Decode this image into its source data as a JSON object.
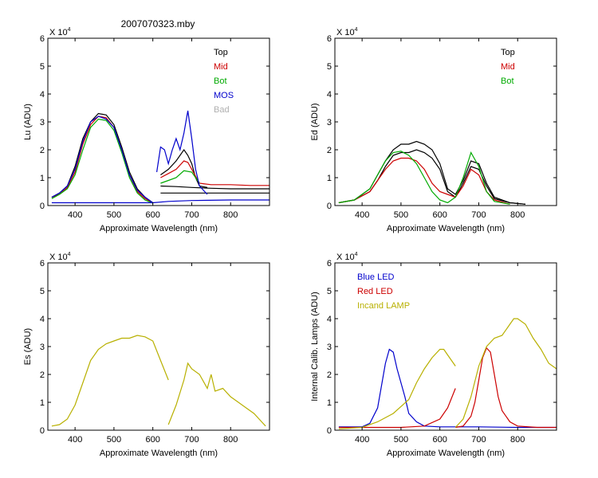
{
  "figure_title": "2007070323.mby",
  "exponent_label": {
    "base": "X 10",
    "power": "4"
  },
  "chart_data": [
    {
      "id": "lu",
      "type": "line",
      "ylabel": "Lu (ADU)",
      "xlabel": "Approximate Wavelength (nm)",
      "xlim": [
        330,
        900
      ],
      "ylim": [
        0,
        6
      ],
      "xticks": [
        400,
        500,
        600,
        700,
        800
      ],
      "yticks": [
        0,
        1,
        2,
        3,
        4,
        5,
        6
      ],
      "legend_position": "top-right",
      "legend": [
        {
          "label": "Top",
          "color": "#000000"
        },
        {
          "label": "Mid",
          "color": "#cc0000"
        },
        {
          "label": "Bot",
          "color": "#00aa00"
        },
        {
          "label": "MOS",
          "color": "#0000cc"
        },
        {
          "label": "Bad",
          "color": "#b0b0b0"
        }
      ],
      "series": [
        {
          "name": "Top",
          "color": "#000000",
          "x": [
            340,
            360,
            380,
            400,
            420,
            440,
            460,
            480,
            500,
            520,
            540,
            560,
            580,
            600
          ],
          "y": [
            0.3,
            0.45,
            0.7,
            1.4,
            2.4,
            3.0,
            3.3,
            3.25,
            2.9,
            2.1,
            1.2,
            0.6,
            0.3,
            0.1
          ]
        },
        {
          "name": "Top",
          "color": "#000000",
          "x": [
            620,
            640,
            660,
            680,
            690,
            700,
            710,
            720,
            740
          ],
          "y": [
            1.1,
            1.3,
            1.6,
            2.0,
            1.8,
            1.5,
            1.0,
            0.7,
            0.65
          ]
        },
        {
          "name": "Top",
          "color": "#000000",
          "x": [
            620,
            660,
            700,
            750,
            800,
            850,
            900
          ],
          "y": [
            0.7,
            0.68,
            0.65,
            0.62,
            0.6,
            0.6,
            0.6
          ]
        },
        {
          "name": "Top",
          "color": "#000000",
          "x": [
            620,
            660,
            700,
            750,
            800,
            850,
            900
          ],
          "y": [
            0.45,
            0.45,
            0.45,
            0.45,
            0.45,
            0.45,
            0.45
          ]
        },
        {
          "name": "Mid",
          "color": "#cc0000",
          "x": [
            340,
            360,
            380,
            400,
            420,
            440,
            460,
            480,
            500,
            520,
            540,
            560,
            580,
            600
          ],
          "y": [
            0.3,
            0.4,
            0.65,
            1.2,
            2.2,
            2.9,
            3.2,
            3.15,
            2.8,
            2.0,
            1.1,
            0.5,
            0.25,
            0.1
          ]
        },
        {
          "name": "Mid",
          "color": "#cc0000",
          "x": [
            620,
            640,
            660,
            680,
            690,
            700,
            720,
            750,
            800,
            850,
            900
          ],
          "y": [
            1.0,
            1.15,
            1.3,
            1.6,
            1.55,
            1.3,
            0.8,
            0.75,
            0.75,
            0.72,
            0.72
          ]
        },
        {
          "name": "Bot",
          "color": "#00aa00",
          "x": [
            340,
            360,
            380,
            400,
            420,
            440,
            460,
            480,
            500,
            520,
            540,
            560,
            580,
            600
          ],
          "y": [
            0.25,
            0.4,
            0.6,
            1.1,
            2.0,
            2.8,
            3.1,
            3.05,
            2.7,
            1.9,
            1.0,
            0.45,
            0.2,
            0.08
          ]
        },
        {
          "name": "Bot",
          "color": "#00aa00",
          "x": [
            620,
            640,
            660,
            680,
            700,
            720
          ],
          "y": [
            0.8,
            0.9,
            1.0,
            1.25,
            1.2,
            0.8
          ]
        },
        {
          "name": "MOS",
          "color": "#0000cc",
          "x": [
            340,
            360,
            380,
            400,
            420,
            440,
            460,
            480,
            500,
            520,
            540,
            560,
            580,
            600
          ],
          "y": [
            0.3,
            0.45,
            0.7,
            1.3,
            2.3,
            3.0,
            3.2,
            3.1,
            2.8,
            2.0,
            1.1,
            0.55,
            0.3,
            0.1
          ]
        },
        {
          "name": "MOS",
          "color": "#0000cc",
          "x": [
            610,
            620,
            630,
            640,
            650,
            660,
            670,
            680,
            690,
            700,
            710,
            720,
            740
          ],
          "y": [
            1.2,
            2.1,
            2.0,
            1.5,
            2.0,
            2.4,
            2.0,
            2.6,
            3.4,
            2.4,
            1.3,
            0.7,
            0.4
          ]
        },
        {
          "name": "MOS",
          "color": "#0000cc",
          "x": [
            340,
            600,
            640,
            700,
            800,
            900
          ],
          "y": [
            0.1,
            0.1,
            0.15,
            0.18,
            0.2,
            0.2
          ]
        }
      ]
    },
    {
      "id": "ed",
      "type": "line",
      "ylabel": "Ed  (ADU)",
      "xlabel": "Approximate Wavelength (nm)",
      "xlim": [
        330,
        900
      ],
      "ylim": [
        0,
        6
      ],
      "xticks": [
        400,
        500,
        600,
        700,
        800
      ],
      "yticks": [
        0,
        1,
        2,
        3,
        4,
        5,
        6
      ],
      "legend_position": "top-right",
      "legend": [
        {
          "label": "Top",
          "color": "#000000"
        },
        {
          "label": "Mid",
          "color": "#cc0000"
        },
        {
          "label": "Bot",
          "color": "#00aa00"
        }
      ],
      "series": [
        {
          "name": "Top",
          "color": "#000000",
          "x": [
            340,
            380,
            420,
            440,
            460,
            480,
            500,
            520,
            540,
            560,
            580,
            600,
            620,
            640,
            660,
            680,
            700,
            720,
            740,
            780,
            820
          ],
          "y": [
            0.1,
            0.2,
            0.6,
            1.1,
            1.6,
            2.0,
            2.2,
            2.2,
            2.3,
            2.2,
            2.0,
            1.5,
            0.6,
            0.4,
            0.9,
            1.6,
            1.5,
            0.8,
            0.3,
            0.1,
            0.05
          ]
        },
        {
          "name": "Top",
          "color": "#000000",
          "x": [
            340,
            380,
            420,
            440,
            460,
            480,
            500,
            520,
            540,
            560,
            580,
            600,
            620,
            640,
            660,
            680,
            700,
            720,
            740,
            780,
            820
          ],
          "y": [
            0.1,
            0.2,
            0.5,
            0.9,
            1.4,
            1.8,
            1.9,
            1.9,
            2.0,
            1.9,
            1.7,
            1.3,
            0.5,
            0.3,
            0.8,
            1.4,
            1.3,
            0.7,
            0.25,
            0.1,
            0.05
          ]
        },
        {
          "name": "Mid",
          "color": "#cc0000",
          "x": [
            340,
            380,
            420,
            440,
            460,
            480,
            500,
            520,
            540,
            560,
            580,
            600,
            620,
            640,
            660,
            680,
            700,
            720,
            740,
            780
          ],
          "y": [
            0.1,
            0.2,
            0.5,
            0.9,
            1.3,
            1.6,
            1.7,
            1.7,
            1.6,
            1.3,
            0.8,
            0.5,
            0.4,
            0.3,
            0.7,
            1.3,
            1.1,
            0.5,
            0.2,
            0.05
          ]
        },
        {
          "name": "Bot",
          "color": "#00aa00",
          "x": [
            340,
            380,
            420,
            440,
            460,
            480,
            500,
            520,
            540,
            560,
            580,
            600,
            620,
            640,
            660,
            680,
            700,
            720,
            740,
            780
          ],
          "y": [
            0.1,
            0.2,
            0.6,
            1.1,
            1.6,
            1.9,
            1.95,
            1.8,
            1.5,
            1.0,
            0.5,
            0.2,
            0.1,
            0.3,
            1.0,
            1.9,
            1.4,
            0.5,
            0.15,
            0.05
          ]
        }
      ]
    },
    {
      "id": "es",
      "type": "line",
      "ylabel": "Es (ADU)",
      "xlabel": "Approximate Wavelength (nm)",
      "xlim": [
        330,
        900
      ],
      "ylim": [
        0,
        6
      ],
      "xticks": [
        400,
        500,
        600,
        700,
        800
      ],
      "yticks": [
        0,
        1,
        2,
        3,
        4,
        5,
        6
      ],
      "legend": [],
      "series": [
        {
          "name": "Es",
          "color": "#b8b000",
          "x": [
            340,
            360,
            380,
            400,
            420,
            440,
            460,
            480,
            500,
            520,
            540,
            560,
            580,
            600,
            620,
            640
          ],
          "y": [
            0.15,
            0.2,
            0.4,
            0.9,
            1.7,
            2.5,
            2.9,
            3.1,
            3.2,
            3.3,
            3.3,
            3.4,
            3.35,
            3.2,
            2.5,
            1.8
          ]
        },
        {
          "name": "Es",
          "color": "#b8b000",
          "x": [
            640,
            660,
            680,
            690,
            700,
            720,
            740,
            750,
            760,
            780,
            800,
            820,
            840,
            860,
            880,
            890
          ],
          "y": [
            0.2,
            0.9,
            1.8,
            2.4,
            2.2,
            2.0,
            1.5,
            2.0,
            1.4,
            1.5,
            1.2,
            1.0,
            0.8,
            0.6,
            0.3,
            0.15
          ]
        }
      ]
    },
    {
      "id": "cal",
      "type": "line",
      "ylabel": "Internal Calib. Lamps (ADU)",
      "xlabel": "Approximate Wavelength (nm)",
      "xlim": [
        330,
        900
      ],
      "ylim": [
        0,
        6
      ],
      "xticks": [
        400,
        500,
        600,
        700,
        800
      ],
      "yticks": [
        0,
        1,
        2,
        3,
        4,
        5,
        6
      ],
      "legend_position": "top-left",
      "legend": [
        {
          "label": "Blue LED",
          "color": "#0000cc"
        },
        {
          "label": "Red LED",
          "color": "#cc0000"
        },
        {
          "label": "Incand LAMP",
          "color": "#b8b000"
        }
      ],
      "series": [
        {
          "name": "Blue LED",
          "color": "#0000cc",
          "x": [
            340,
            400,
            420,
            440,
            450,
            460,
            470,
            480,
            490,
            500,
            510,
            520,
            540,
            560,
            600,
            640,
            700,
            800,
            900
          ],
          "y": [
            0.12,
            0.12,
            0.25,
            0.8,
            1.6,
            2.4,
            2.9,
            2.8,
            2.2,
            1.7,
            1.2,
            0.6,
            0.3,
            0.15,
            0.12,
            0.12,
            0.12,
            0.1,
            0.1
          ]
        },
        {
          "name": "Red LED",
          "color": "#cc0000",
          "x": [
            340,
            500,
            560,
            600,
            620,
            640
          ],
          "y": [
            0.1,
            0.1,
            0.15,
            0.4,
            0.8,
            1.5
          ]
        },
        {
          "name": "Red LED",
          "color": "#cc0000",
          "x": [
            640,
            660,
            680,
            690,
            700,
            710,
            720,
            730,
            740,
            750,
            760,
            780,
            800,
            850,
            900
          ],
          "y": [
            0.1,
            0.15,
            0.5,
            1.0,
            1.8,
            2.6,
            2.95,
            2.8,
            2.0,
            1.2,
            0.7,
            0.3,
            0.15,
            0.1,
            0.1
          ]
        },
        {
          "name": "Incand LAMP",
          "color": "#b8b000",
          "x": [
            340,
            400,
            440,
            480,
            520,
            540,
            560,
            580,
            600,
            610,
            620,
            630,
            640
          ],
          "y": [
            0.05,
            0.1,
            0.3,
            0.6,
            1.1,
            1.7,
            2.2,
            2.6,
            2.9,
            2.9,
            2.7,
            2.5,
            2.3
          ]
        },
        {
          "name": "Incand LAMP",
          "color": "#b8b000",
          "x": [
            640,
            660,
            680,
            700,
            720,
            740,
            760,
            780,
            790,
            800,
            820,
            840,
            860,
            880,
            900
          ],
          "y": [
            0.1,
            0.4,
            1.2,
            2.3,
            3.0,
            3.3,
            3.4,
            3.8,
            4.0,
            4.0,
            3.8,
            3.3,
            2.9,
            2.4,
            2.2
          ]
        }
      ]
    }
  ]
}
